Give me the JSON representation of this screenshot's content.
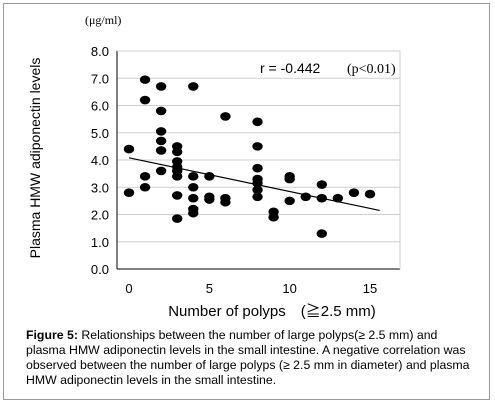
{
  "chart_data": {
    "type": "scatter",
    "unit_label": "(μg/ml)",
    "ylabel": "Plasma HMW adiponectin levels",
    "xlabel": "Number of polyps　(≧2.5 mm)",
    "annotation_r": "r = -0.442",
    "annotation_p": "(p<0.01)",
    "xlim": [
      0,
      16
    ],
    "ylim": [
      0,
      8
    ],
    "x_ticks": [
      0,
      5,
      10,
      15
    ],
    "y_ticks": [
      0.0,
      1.0,
      2.0,
      3.0,
      4.0,
      5.0,
      6.0,
      7.0,
      8.0
    ],
    "y_tick_labels": [
      "0.0",
      "1.0",
      "2.0",
      "3.0",
      "4.0",
      "5.0",
      "6.0",
      "7.0",
      "8.0"
    ],
    "x_tick_labels": [
      "0",
      "5",
      "10",
      "15"
    ],
    "grid": true,
    "points": [
      {
        "x": 0,
        "y": 4.4
      },
      {
        "x": 0,
        "y": 2.8
      },
      {
        "x": 1,
        "y": 6.95
      },
      {
        "x": 1,
        "y": 6.2
      },
      {
        "x": 1,
        "y": 3.4
      },
      {
        "x": 1,
        "y": 3.0
      },
      {
        "x": 2,
        "y": 6.7
      },
      {
        "x": 2,
        "y": 5.8
      },
      {
        "x": 2,
        "y": 5.05
      },
      {
        "x": 2,
        "y": 4.7
      },
      {
        "x": 2,
        "y": 4.35
      },
      {
        "x": 2,
        "y": 3.6
      },
      {
        "x": 3,
        "y": 4.5
      },
      {
        "x": 3,
        "y": 4.3
      },
      {
        "x": 3,
        "y": 3.95
      },
      {
        "x": 3,
        "y": 3.75
      },
      {
        "x": 3,
        "y": 3.6
      },
      {
        "x": 3,
        "y": 3.4
      },
      {
        "x": 3,
        "y": 2.7
      },
      {
        "x": 3,
        "y": 1.85
      },
      {
        "x": 4,
        "y": 6.7
      },
      {
        "x": 4,
        "y": 3.4
      },
      {
        "x": 4,
        "y": 3.0
      },
      {
        "x": 4,
        "y": 2.6
      },
      {
        "x": 4,
        "y": 2.2
      },
      {
        "x": 4,
        "y": 2.05
      },
      {
        "x": 5,
        "y": 3.4
      },
      {
        "x": 5,
        "y": 2.65
      },
      {
        "x": 5,
        "y": 2.55
      },
      {
        "x": 6,
        "y": 5.6
      },
      {
        "x": 6,
        "y": 2.6
      },
      {
        "x": 6,
        "y": 2.45
      },
      {
        "x": 8,
        "y": 5.4
      },
      {
        "x": 8,
        "y": 4.5
      },
      {
        "x": 8,
        "y": 3.7
      },
      {
        "x": 8,
        "y": 3.3
      },
      {
        "x": 8,
        "y": 3.15
      },
      {
        "x": 8,
        "y": 2.9
      },
      {
        "x": 8,
        "y": 2.65
      },
      {
        "x": 9,
        "y": 2.1
      },
      {
        "x": 9,
        "y": 1.9
      },
      {
        "x": 10,
        "y": 3.4
      },
      {
        "x": 10,
        "y": 3.3
      },
      {
        "x": 10,
        "y": 2.5
      },
      {
        "x": 11,
        "y": 2.65
      },
      {
        "x": 12,
        "y": 3.1
      },
      {
        "x": 12,
        "y": 2.6
      },
      {
        "x": 12,
        "y": 1.3
      },
      {
        "x": 13,
        "y": 2.6
      },
      {
        "x": 14,
        "y": 2.8
      },
      {
        "x": 15,
        "y": 2.75
      }
    ],
    "trendline": {
      "x": [
        0,
        15.6
      ],
      "y": [
        4.08,
        2.15
      ]
    },
    "colors": {
      "points": "#000000",
      "grid": "#cfcfcf",
      "axes": "#000000",
      "frame": "#9a9a9a"
    }
  },
  "caption": {
    "label": "Figure 5:",
    "text": " Relationships between the number of large polyps(≥ 2.5 mm) and plasma HMW adiponectin levels in the small intestine. A negative correlation was observed between the number of large polyps (≥ 2.5 mm in diameter) and plasma HMW adiponectin levels in the small intestine."
  }
}
